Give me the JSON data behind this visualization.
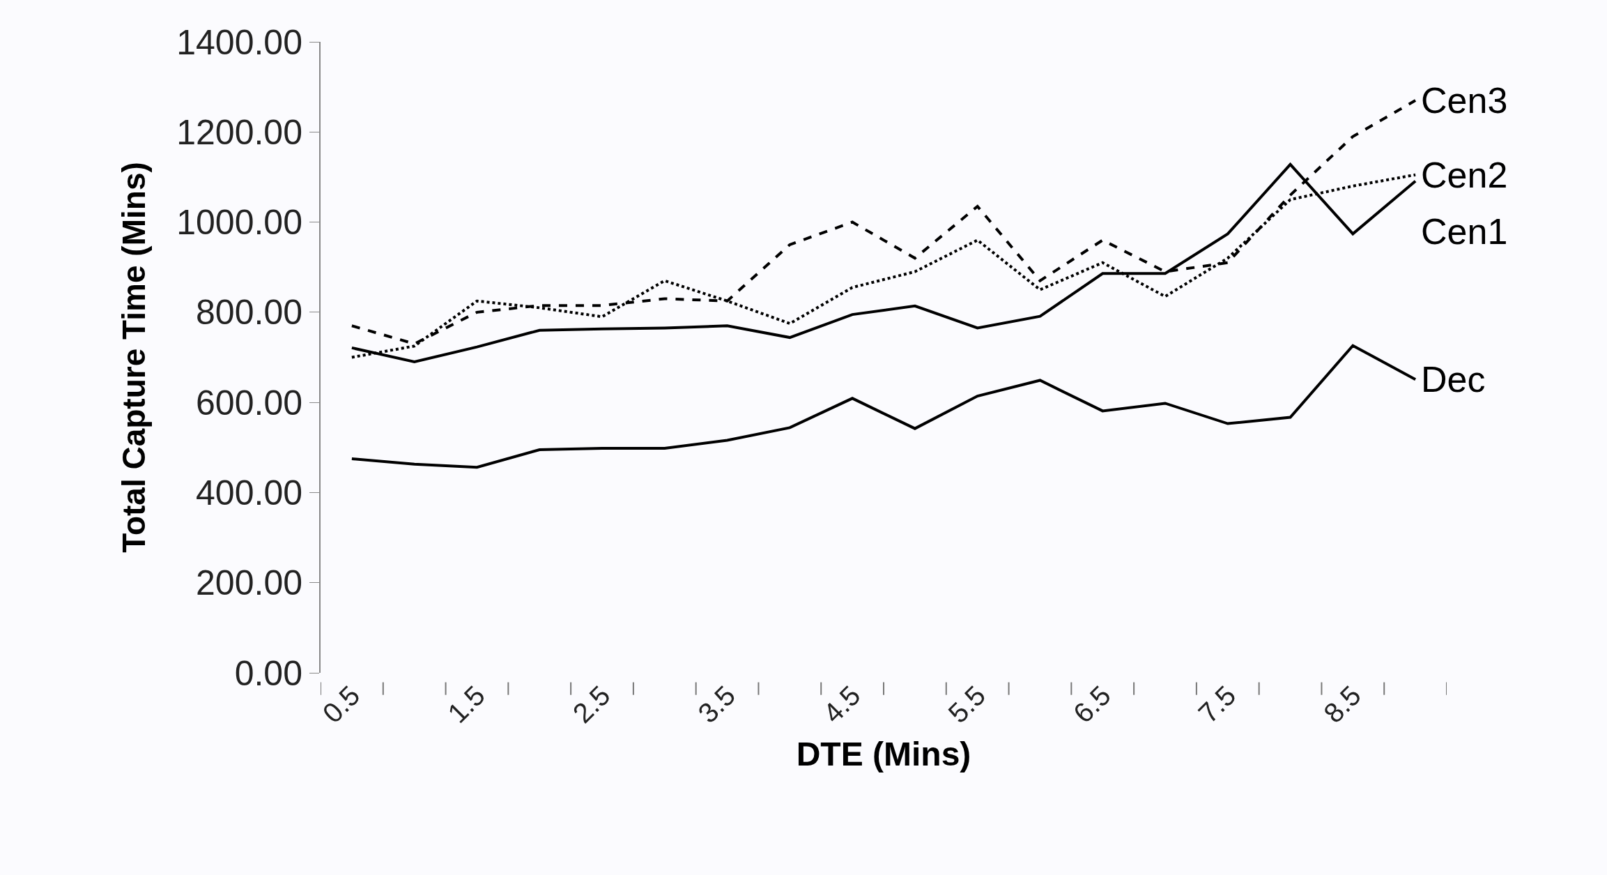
{
  "chart_data": {
    "type": "line",
    "xlabel": "DTE (Mins)",
    "ylabel": "Total Capture Time (Mins)",
    "categories": [
      "0.5",
      null,
      "1.5",
      null,
      "2.5",
      null,
      "3.5",
      null,
      "4.5",
      null,
      "5.5",
      null,
      "6.5",
      null,
      "7.5",
      null,
      "8.5",
      null
    ],
    "ylim": [
      0,
      1400
    ],
    "yticks": [
      {
        "value": 0,
        "label": "0.00"
      },
      {
        "value": 200,
        "label": "200.00"
      },
      {
        "value": 400,
        "label": "400.00"
      },
      {
        "value": 600,
        "label": "600.00"
      },
      {
        "value": 800,
        "label": "800.00"
      },
      {
        "value": 1000,
        "label": "1000.00"
      },
      {
        "value": 1200,
        "label": "1200.00"
      },
      {
        "value": 1400,
        "label": "1400.00"
      }
    ],
    "grid": false,
    "legend": false,
    "marker": "none",
    "series": [
      {
        "name": "Cen3",
        "color": "#000000",
        "line_style": "dashed",
        "values": [
          770,
          730,
          800,
          815,
          815,
          830,
          825,
          950,
          1000,
          920,
          1035,
          870,
          960,
          890,
          910,
          1060,
          1190,
          1270
        ]
      },
      {
        "name": "Cen2",
        "color": "#000000",
        "line_style": "dotted",
        "values": [
          700,
          725,
          825,
          810,
          790,
          870,
          825,
          775,
          855,
          890,
          960,
          850,
          910,
          835,
          920,
          1050,
          1080,
          1105
        ]
      },
      {
        "name": "Cen1",
        "color": "#000000",
        "line_style": "solid",
        "values": [
          721,
          690,
          723,
          760,
          763,
          765,
          770,
          744,
          795,
          814,
          765,
          791,
          886,
          886,
          974,
          1128,
          974,
          1091
        ]
      },
      {
        "name": "Dec",
        "color": "#000000",
        "line_style": "solid",
        "values": [
          475,
          463,
          456,
          495,
          498,
          498,
          516,
          544,
          609,
          542,
          614,
          649,
          581,
          598,
          553,
          567,
          726,
          651
        ]
      }
    ]
  }
}
